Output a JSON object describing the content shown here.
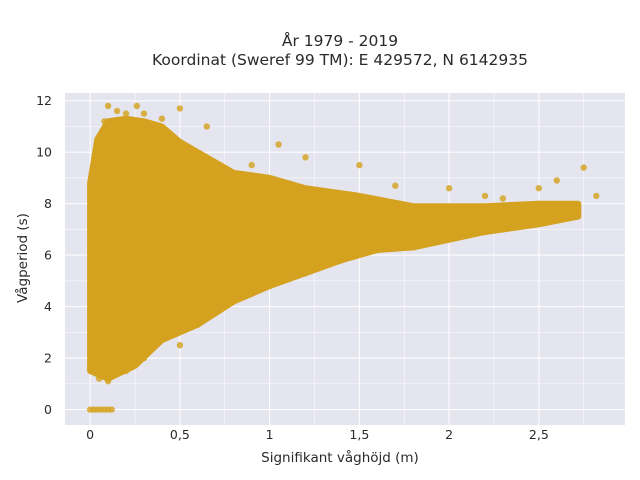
{
  "chart_data": {
    "type": "scatter",
    "title_line1": "År 1979 - 2019",
    "title_line2": "Koordinat (Sweref 99 TM): E 429572, N 6142935",
    "xlabel": "Signifikant våghöjd (m)",
    "ylabel": "Vågperiod (s)",
    "xlim": [
      -0.14,
      2.98
    ],
    "ylim": [
      -0.6,
      12.3
    ],
    "x_ticks": [
      0,
      0.5,
      1,
      1.5,
      2,
      2.5
    ],
    "x_tick_labels": [
      "0",
      "0,5",
      "1",
      "1,5",
      "2",
      "2,5"
    ],
    "y_ticks": [
      0,
      2,
      4,
      6,
      8,
      10,
      12
    ],
    "y_tick_labels": [
      "0",
      "2",
      "4",
      "6",
      "8",
      "10",
      "12"
    ],
    "grid": true,
    "legend": "none",
    "colors": {
      "marker": "#d4a21f",
      "plot_background": "#e5e5f0",
      "grid": "#ffffff"
    },
    "series": [
      {
        "values_note_points": [
          [
            0.0,
            0.0
          ],
          [
            0.02,
            0.0
          ],
          [
            0.04,
            0.0
          ],
          [
            0.06,
            0.0
          ],
          [
            0.08,
            0.0
          ],
          [
            0.1,
            0.0
          ],
          [
            0.12,
            0.0
          ],
          [
            0.0,
            1.6
          ],
          [
            0.02,
            4.2
          ],
          [
            0.03,
            7.0
          ],
          [
            0.05,
            9.0
          ],
          [
            0.08,
            11.2
          ],
          [
            0.1,
            11.8
          ],
          [
            0.15,
            11.6
          ],
          [
            0.2,
            11.5
          ],
          [
            0.26,
            11.8
          ],
          [
            0.3,
            11.5
          ],
          [
            0.4,
            11.3
          ],
          [
            0.5,
            11.7
          ],
          [
            0.65,
            11.0
          ],
          [
            0.05,
            1.2
          ],
          [
            0.1,
            1.1
          ],
          [
            0.2,
            1.5
          ],
          [
            0.3,
            2.0
          ],
          [
            0.4,
            2.7
          ],
          [
            0.5,
            2.5
          ],
          [
            0.6,
            3.3
          ],
          [
            0.7,
            3.8
          ],
          [
            0.8,
            4.2
          ],
          [
            1.0,
            4.8
          ],
          [
            1.2,
            5.3
          ],
          [
            1.4,
            5.8
          ],
          [
            1.6,
            6.2
          ],
          [
            1.8,
            6.3
          ],
          [
            2.0,
            6.7
          ],
          [
            2.2,
            6.9
          ],
          [
            2.5,
            7.3
          ],
          [
            2.7,
            7.6
          ],
          [
            0.9,
            9.5
          ],
          [
            1.05,
            10.3
          ],
          [
            1.2,
            9.8
          ],
          [
            1.5,
            9.5
          ],
          [
            1.7,
            8.7
          ],
          [
            2.0,
            8.6
          ],
          [
            2.2,
            8.3
          ],
          [
            2.3,
            8.2
          ],
          [
            2.5,
            8.6
          ],
          [
            2.6,
            8.9
          ],
          [
            2.75,
            9.4
          ],
          [
            2.82,
            8.3
          ]
        ]
      }
    ]
  }
}
